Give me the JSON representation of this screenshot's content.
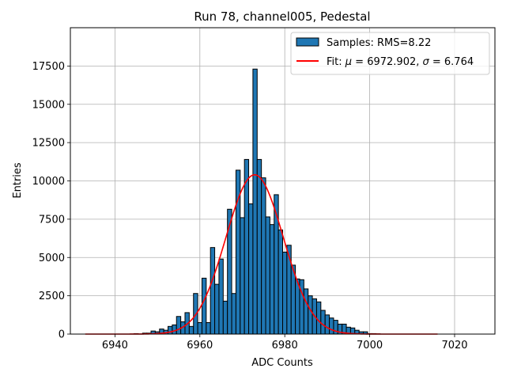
{
  "chart_data": {
    "type": "bar",
    "title": "Run 78, channel005, Pedestal",
    "xlabel": "ADC Counts",
    "ylabel": "Entries",
    "xlim": [
      6929.5,
      7029.5
    ],
    "ylim": [
      0,
      20000
    ],
    "xticks": [
      6940,
      6960,
      6980,
      7000,
      7020
    ],
    "yticks": [
      0,
      2500,
      5000,
      7500,
      10000,
      12500,
      15000,
      17500
    ],
    "grid": true,
    "legend_position": "top-right",
    "histogram": {
      "name": "Samples: RMS=8.22",
      "color": "#1f77b4",
      "bin_width": 1,
      "bins": [
        {
          "x": 6945,
          "y": 30
        },
        {
          "x": 6946,
          "y": 0
        },
        {
          "x": 6947,
          "y": 60
        },
        {
          "x": 6948,
          "y": 60
        },
        {
          "x": 6949,
          "y": 200
        },
        {
          "x": 6950,
          "y": 150
        },
        {
          "x": 6951,
          "y": 330
        },
        {
          "x": 6952,
          "y": 250
        },
        {
          "x": 6953,
          "y": 500
        },
        {
          "x": 6954,
          "y": 600
        },
        {
          "x": 6955,
          "y": 1150
        },
        {
          "x": 6956,
          "y": 800
        },
        {
          "x": 6957,
          "y": 1400
        },
        {
          "x": 6958,
          "y": 500
        },
        {
          "x": 6959,
          "y": 2650
        },
        {
          "x": 6960,
          "y": 750
        },
        {
          "x": 6961,
          "y": 3650
        },
        {
          "x": 6962,
          "y": 750
        },
        {
          "x": 6963,
          "y": 5650
        },
        {
          "x": 6964,
          "y": 3250
        },
        {
          "x": 6965,
          "y": 4900
        },
        {
          "x": 6966,
          "y": 2150
        },
        {
          "x": 6967,
          "y": 8150
        },
        {
          "x": 6968,
          "y": 2650
        },
        {
          "x": 6969,
          "y": 10700
        },
        {
          "x": 6970,
          "y": 7600
        },
        {
          "x": 6971,
          "y": 11400
        },
        {
          "x": 6972,
          "y": 8500
        },
        {
          "x": 6973,
          "y": 17300
        },
        {
          "x": 6974,
          "y": 11400
        },
        {
          "x": 6975,
          "y": 10200
        },
        {
          "x": 6976,
          "y": 7650
        },
        {
          "x": 6977,
          "y": 7150
        },
        {
          "x": 6978,
          "y": 9100
        },
        {
          "x": 6979,
          "y": 6800
        },
        {
          "x": 6980,
          "y": 5350
        },
        {
          "x": 6981,
          "y": 5800
        },
        {
          "x": 6982,
          "y": 4500
        },
        {
          "x": 6983,
          "y": 3600
        },
        {
          "x": 6984,
          "y": 3550
        },
        {
          "x": 6985,
          "y": 2950
        },
        {
          "x": 6986,
          "y": 2500
        },
        {
          "x": 6987,
          "y": 2300
        },
        {
          "x": 6988,
          "y": 2100
        },
        {
          "x": 6989,
          "y": 1550
        },
        {
          "x": 6990,
          "y": 1250
        },
        {
          "x": 6991,
          "y": 1050
        },
        {
          "x": 6992,
          "y": 900
        },
        {
          "x": 6993,
          "y": 650
        },
        {
          "x": 6994,
          "y": 650
        },
        {
          "x": 6995,
          "y": 450
        },
        {
          "x": 6996,
          "y": 400
        },
        {
          "x": 6997,
          "y": 250
        },
        {
          "x": 6998,
          "y": 150
        },
        {
          "x": 6999,
          "y": 150
        },
        {
          "x": 7000,
          "y": 30
        },
        {
          "x": 7001,
          "y": 30
        },
        {
          "x": 7002,
          "y": 15
        }
      ]
    },
    "fit": {
      "name": "Fit: $\\mu$ = 6972.902, $\\sigma$ = 6.764",
      "legend_prefix": "Fit: ",
      "legend_mu_symbol": "μ",
      "legend_mu_text": " = 6972.902, ",
      "legend_sigma_symbol": "σ",
      "legend_sigma_text": " = 6.764",
      "color": "#ff0000",
      "mu": 6972.902,
      "sigma": 6.764,
      "amplitude": 10400,
      "x_range": [
        6933,
        7016
      ]
    }
  }
}
